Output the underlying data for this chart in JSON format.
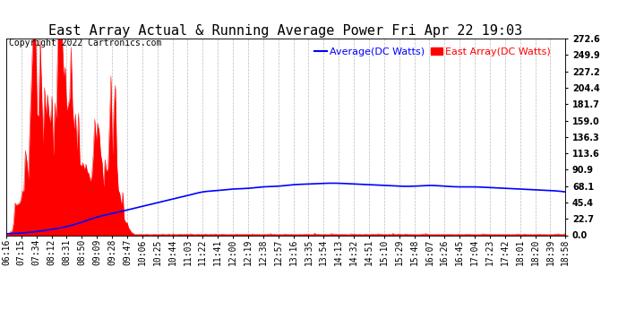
{
  "title": "East Array Actual & Running Average Power Fri Apr 22 19:03",
  "copyright": "Copyright 2022 Cartronics.com",
  "legend_avg": "Average(DC Watts)",
  "legend_east": "East Array(DC Watts)",
  "ylabel_right_ticks": [
    0.0,
    22.7,
    45.4,
    68.1,
    90.9,
    113.6,
    136.3,
    159.0,
    181.7,
    204.4,
    227.2,
    249.9,
    272.6
  ],
  "ymax": 272.6,
  "ymin": 0.0,
  "bg_color": "#ffffff",
  "grid_color": "#aaaaaa",
  "fill_color": "#ff0000",
  "avg_line_color": "#0000ff",
  "east_array_color": "#ff0000",
  "title_fontsize": 11,
  "tick_fontsize": 7,
  "copyright_fontsize": 7
}
